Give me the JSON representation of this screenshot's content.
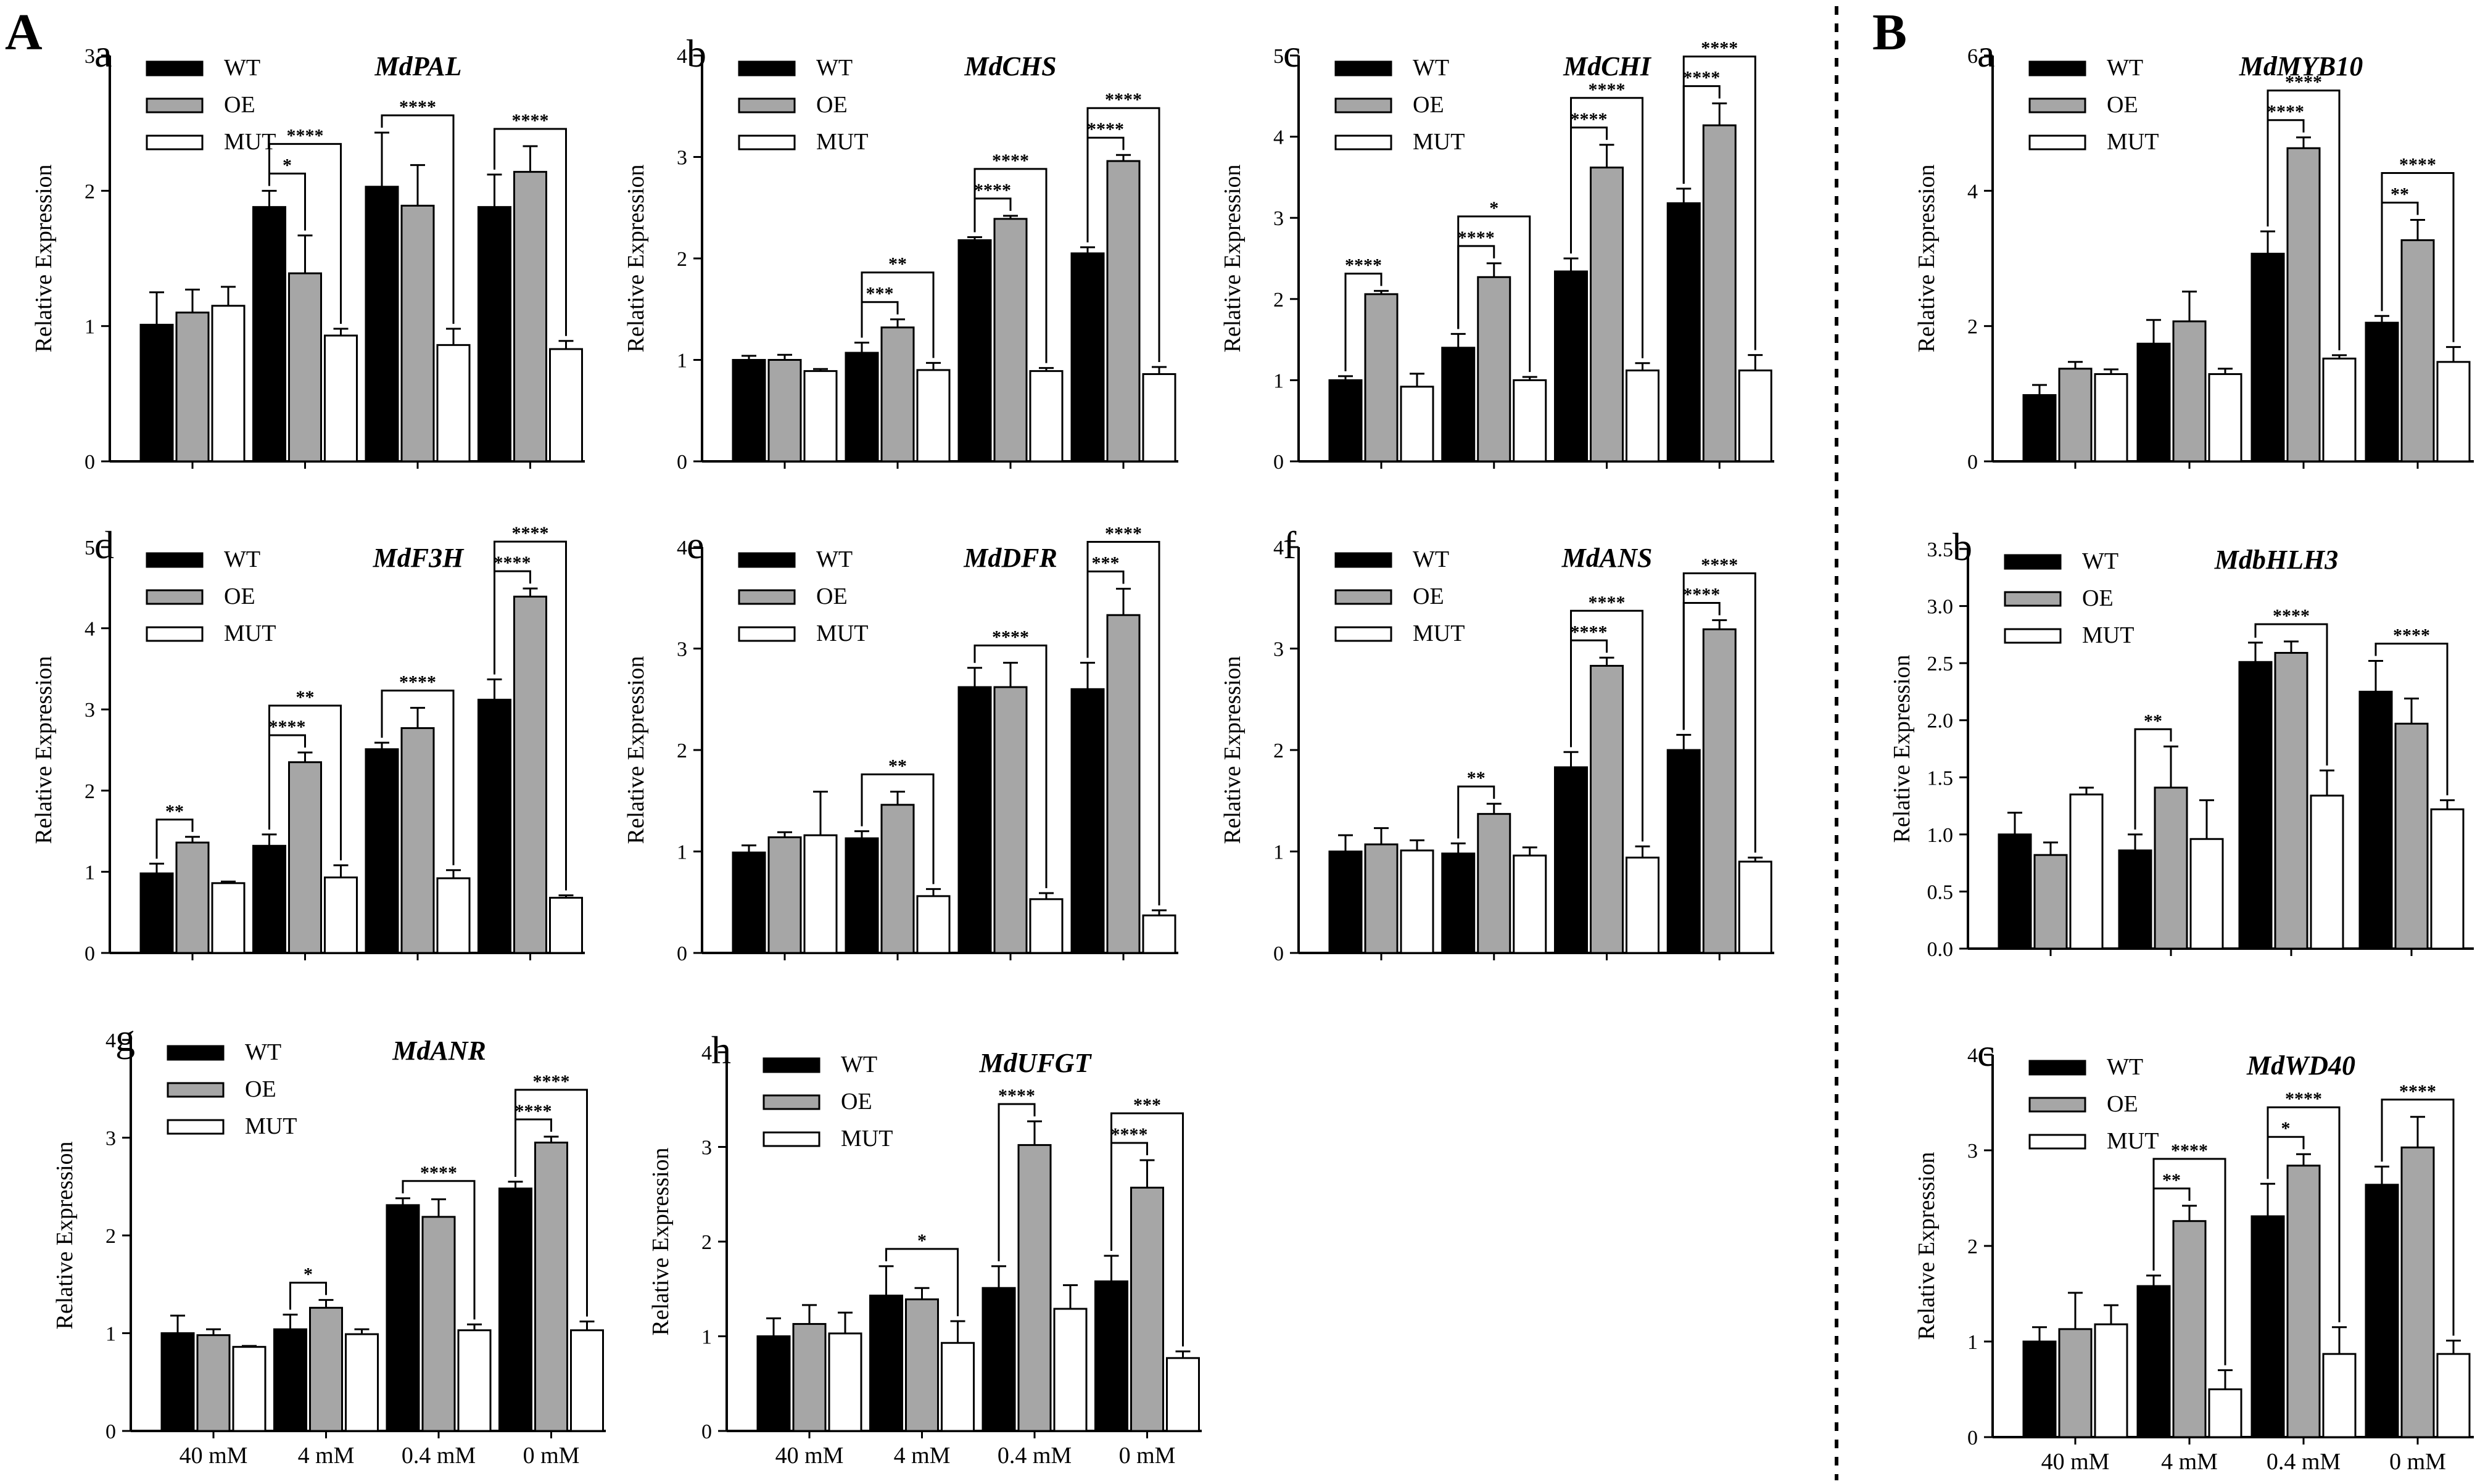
{
  "section_labels": {
    "A": "A",
    "B": "B"
  },
  "legend": {
    "series": [
      {
        "name": "WT",
        "color": "#000000"
      },
      {
        "name": "OE",
        "color": "#a6a6a6"
      },
      {
        "name": "MUT",
        "color": "#ffffff"
      }
    ]
  },
  "categories": [
    "40 mM",
    "4 mM",
    "0.4 mM",
    "0 mM"
  ],
  "chart_data": [
    {
      "id": "A-a",
      "panel_letter": "a",
      "gene": "MdPAL",
      "type": "bar",
      "ylabel": "Relative Expression",
      "ylim": [
        0,
        3
      ],
      "yticks": [
        "0",
        "1",
        "2",
        "3"
      ],
      "categories": [
        "40 mM",
        "4 mM",
        "0.4 mM",
        "0 mM"
      ],
      "series": [
        {
          "name": "WT",
          "values": [
            1.01,
            1.88,
            2.03,
            1.88
          ],
          "errors": [
            0.24,
            0.12,
            0.4,
            0.24
          ]
        },
        {
          "name": "OE",
          "values": [
            1.1,
            1.39,
            1.89,
            2.14
          ],
          "errors": [
            0.17,
            0.28,
            0.3,
            0.19
          ]
        },
        {
          "name": "MUT",
          "values": [
            1.15,
            0.93,
            0.86,
            0.83
          ],
          "errors": [
            0.14,
            0.05,
            0.12,
            0.06
          ]
        }
      ],
      "annotations": [
        {
          "group": 1,
          "from": "WT",
          "to": "OE",
          "text": "*"
        },
        {
          "group": 1,
          "from": "WT",
          "to": "MUT",
          "text": "****"
        },
        {
          "group": 2,
          "from": "WT",
          "to": "MUT",
          "text": "****"
        },
        {
          "group": 3,
          "from": "WT",
          "to": "MUT",
          "text": "****"
        }
      ]
    },
    {
      "id": "A-b",
      "panel_letter": "b",
      "gene": "MdCHS",
      "type": "bar",
      "ylabel": "Relative Expression",
      "ylim": [
        0,
        4
      ],
      "yticks": [
        "0",
        "1",
        "2",
        "3",
        "4"
      ],
      "categories": [
        "40 mM",
        "4 mM",
        "0.4 mM",
        "0 mM"
      ],
      "series": [
        {
          "name": "WT",
          "values": [
            1.0,
            1.07,
            2.18,
            2.05
          ],
          "errors": [
            0.04,
            0.1,
            0.03,
            0.06
          ]
        },
        {
          "name": "OE",
          "values": [
            1.0,
            1.32,
            2.39,
            2.96
          ],
          "errors": [
            0.05,
            0.08,
            0.03,
            0.06
          ]
        },
        {
          "name": "MUT",
          "values": [
            0.89,
            0.9,
            0.89,
            0.86
          ],
          "errors": [
            0.02,
            0.07,
            0.03,
            0.07
          ]
        }
      ],
      "annotations": [
        {
          "group": 1,
          "from": "WT",
          "to": "OE",
          "text": "***"
        },
        {
          "group": 1,
          "from": "WT",
          "to": "MUT",
          "text": "**"
        },
        {
          "group": 2,
          "from": "WT",
          "to": "OE",
          "text": "****"
        },
        {
          "group": 2,
          "from": "WT",
          "to": "MUT",
          "text": "****"
        },
        {
          "group": 3,
          "from": "WT",
          "to": "OE",
          "text": "****"
        },
        {
          "group": 3,
          "from": "WT",
          "to": "MUT",
          "text": "****"
        }
      ]
    },
    {
      "id": "A-c",
      "panel_letter": "c",
      "gene": "MdCHI",
      "type": "bar",
      "ylabel": "Relative Expression",
      "ylim": [
        0,
        5
      ],
      "yticks": [
        "0",
        "1",
        "2",
        "3",
        "4",
        "5"
      ],
      "categories": [
        "40 mM",
        "4 mM",
        "0.4 mM",
        "0 mM"
      ],
      "series": [
        {
          "name": "WT",
          "values": [
            1.0,
            1.4,
            2.34,
            3.18
          ],
          "errors": [
            0.05,
            0.17,
            0.16,
            0.18
          ]
        },
        {
          "name": "OE",
          "values": [
            2.06,
            2.27,
            3.62,
            4.14
          ],
          "errors": [
            0.04,
            0.17,
            0.28,
            0.27
          ]
        },
        {
          "name": "MUT",
          "values": [
            0.92,
            1.0,
            1.12,
            1.12
          ],
          "errors": [
            0.16,
            0.04,
            0.09,
            0.19
          ]
        }
      ],
      "annotations": [
        {
          "group": 0,
          "from": "WT",
          "to": "OE",
          "text": "****"
        },
        {
          "group": 1,
          "from": "WT",
          "to": "OE",
          "text": "****"
        },
        {
          "group": 1,
          "from": "WT",
          "to": "MUT",
          "text": "*"
        },
        {
          "group": 2,
          "from": "WT",
          "to": "OE",
          "text": "****"
        },
        {
          "group": 2,
          "from": "WT",
          "to": "MUT",
          "text": "****"
        },
        {
          "group": 3,
          "from": "WT",
          "to": "OE",
          "text": "****"
        },
        {
          "group": 3,
          "from": "WT",
          "to": "MUT",
          "text": "****"
        }
      ]
    },
    {
      "id": "A-d",
      "panel_letter": "d",
      "gene": "MdF3H",
      "type": "bar",
      "ylabel": "Relative Expression",
      "ylim": [
        0,
        5
      ],
      "yticks": [
        "0",
        "1",
        "2",
        "3",
        "4",
        "5"
      ],
      "categories": [
        "40 mM",
        "4 mM",
        "0.4 mM",
        "0 mM"
      ],
      "series": [
        {
          "name": "WT",
          "values": [
            0.98,
            1.32,
            2.51,
            3.12
          ],
          "errors": [
            0.12,
            0.14,
            0.08,
            0.25
          ]
        },
        {
          "name": "OE",
          "values": [
            1.36,
            2.35,
            2.77,
            4.39
          ],
          "errors": [
            0.07,
            0.12,
            0.25,
            0.1
          ]
        },
        {
          "name": "MUT",
          "values": [
            0.86,
            0.93,
            0.92,
            0.68
          ],
          "errors": [
            0.02,
            0.15,
            0.1,
            0.03
          ]
        }
      ],
      "annotations": [
        {
          "group": 0,
          "from": "WT",
          "to": "OE",
          "text": "**"
        },
        {
          "group": 1,
          "from": "WT",
          "to": "OE",
          "text": "****"
        },
        {
          "group": 1,
          "from": "WT",
          "to": "MUT",
          "text": "**"
        },
        {
          "group": 2,
          "from": "WT",
          "to": "MUT",
          "text": "****"
        },
        {
          "group": 3,
          "from": "WT",
          "to": "OE",
          "text": "****"
        },
        {
          "group": 3,
          "from": "WT",
          "to": "MUT",
          "text": "****"
        }
      ]
    },
    {
      "id": "A-e",
      "panel_letter": "e",
      "gene": "MdDFR",
      "type": "bar",
      "ylabel": "Relative Expression",
      "ylim": [
        0,
        4
      ],
      "yticks": [
        "0",
        "1",
        "2",
        "3",
        "4"
      ],
      "categories": [
        "40 mM",
        "4 mM",
        "0.4 mM",
        "0 mM"
      ],
      "series": [
        {
          "name": "WT",
          "values": [
            0.99,
            1.13,
            2.62,
            2.6
          ],
          "errors": [
            0.07,
            0.07,
            0.19,
            0.26
          ]
        },
        {
          "name": "OE",
          "values": [
            1.14,
            1.46,
            2.62,
            3.33
          ],
          "errors": [
            0.05,
            0.13,
            0.24,
            0.26
          ]
        },
        {
          "name": "MUT",
          "values": [
            1.16,
            0.56,
            0.53,
            0.37
          ],
          "errors": [
            0.43,
            0.07,
            0.06,
            0.05
          ]
        }
      ],
      "annotations": [
        {
          "group": 1,
          "from": "WT",
          "to": "MUT",
          "text": "**"
        },
        {
          "group": 2,
          "from": "WT",
          "to": "MUT",
          "text": "****"
        },
        {
          "group": 3,
          "from": "WT",
          "to": "OE",
          "text": "***"
        },
        {
          "group": 3,
          "from": "WT",
          "to": "MUT",
          "text": "****"
        }
      ]
    },
    {
      "id": "A-f",
      "panel_letter": "f",
      "gene": "MdANS",
      "type": "bar",
      "ylabel": "Relative Expression",
      "ylim": [
        0,
        4
      ],
      "yticks": [
        "0",
        "1",
        "2",
        "3",
        "4"
      ],
      "categories": [
        "40 mM",
        "4 mM",
        "0.4 mM",
        "0 mM"
      ],
      "series": [
        {
          "name": "WT",
          "values": [
            1.0,
            0.98,
            1.83,
            2.0
          ],
          "errors": [
            0.16,
            0.1,
            0.15,
            0.15
          ]
        },
        {
          "name": "OE",
          "values": [
            1.07,
            1.37,
            2.83,
            3.19
          ],
          "errors": [
            0.16,
            0.1,
            0.08,
            0.09
          ]
        },
        {
          "name": "MUT",
          "values": [
            1.01,
            0.96,
            0.94,
            0.9
          ],
          "errors": [
            0.1,
            0.08,
            0.11,
            0.04
          ]
        }
      ],
      "annotations": [
        {
          "group": 1,
          "from": "WT",
          "to": "OE",
          "text": "**"
        },
        {
          "group": 2,
          "from": "WT",
          "to": "OE",
          "text": "****"
        },
        {
          "group": 2,
          "from": "WT",
          "to": "MUT",
          "text": "****"
        },
        {
          "group": 3,
          "from": "WT",
          "to": "OE",
          "text": "****"
        },
        {
          "group": 3,
          "from": "WT",
          "to": "MUT",
          "text": "****"
        }
      ]
    },
    {
      "id": "A-g",
      "panel_letter": "g",
      "gene": "MdANR",
      "type": "bar",
      "ylabel": "Relative Expression",
      "ylim": [
        0,
        4
      ],
      "yticks": [
        "0",
        "1",
        "2",
        "3",
        "4"
      ],
      "categories": [
        "40 mM",
        "4 mM",
        "0.4 mM",
        "0 mM"
      ],
      "series": [
        {
          "name": "WT",
          "values": [
            1.0,
            1.04,
            2.31,
            2.48
          ],
          "errors": [
            0.18,
            0.15,
            0.07,
            0.07
          ]
        },
        {
          "name": "OE",
          "values": [
            0.98,
            1.26,
            2.19,
            2.95
          ],
          "errors": [
            0.06,
            0.08,
            0.18,
            0.06
          ]
        },
        {
          "name": "MUT",
          "values": [
            0.86,
            0.99,
            1.03,
            1.03
          ],
          "errors": [
            0.01,
            0.05,
            0.06,
            0.09
          ]
        }
      ],
      "annotations": [
        {
          "group": 1,
          "from": "WT",
          "to": "OE",
          "text": "*"
        },
        {
          "group": 2,
          "from": "WT",
          "to": "MUT",
          "text": "****"
        },
        {
          "group": 3,
          "from": "WT",
          "to": "OE",
          "text": "****"
        },
        {
          "group": 3,
          "from": "WT",
          "to": "MUT",
          "text": "****"
        }
      ]
    },
    {
      "id": "A-h",
      "panel_letter": "h",
      "gene": "MdUFGT",
      "type": "bar",
      "ylabel": "Relative Expression",
      "ylim": [
        0,
        4
      ],
      "yticks": [
        "0",
        "1",
        "2",
        "3",
        "4"
      ],
      "categories": [
        "40 mM",
        "4 mM",
        "0.4 mM",
        "0 mM"
      ],
      "series": [
        {
          "name": "WT",
          "values": [
            1.0,
            1.43,
            1.51,
            1.58
          ],
          "errors": [
            0.19,
            0.31,
            0.23,
            0.27
          ]
        },
        {
          "name": "OE",
          "values": [
            1.13,
            1.39,
            3.02,
            2.57
          ],
          "errors": [
            0.2,
            0.12,
            0.25,
            0.29
          ]
        },
        {
          "name": "MUT",
          "values": [
            1.03,
            0.93,
            1.29,
            0.77
          ],
          "errors": [
            0.22,
            0.23,
            0.25,
            0.07
          ]
        }
      ],
      "annotations": [
        {
          "group": 1,
          "from": "WT",
          "to": "MUT",
          "text": "*"
        },
        {
          "group": 2,
          "from": "WT",
          "to": "OE",
          "text": "****"
        },
        {
          "group": 3,
          "from": "WT",
          "to": "OE",
          "text": "****"
        },
        {
          "group": 3,
          "from": "WT",
          "to": "MUT",
          "text": "***"
        }
      ]
    },
    {
      "id": "B-a",
      "panel_letter": "a",
      "gene": "MdMYB10",
      "type": "bar",
      "ylabel": "Relative Expression",
      "ylim": [
        0,
        6
      ],
      "yticks": [
        "0",
        "2",
        "4",
        "6"
      ],
      "categories": [
        "40 mM",
        "4 mM",
        "0.4 mM",
        "0 mM"
      ],
      "series": [
        {
          "name": "WT",
          "values": [
            0.98,
            1.74,
            3.07,
            2.05
          ],
          "errors": [
            0.15,
            0.35,
            0.33,
            0.1
          ]
        },
        {
          "name": "OE",
          "values": [
            1.37,
            2.07,
            4.63,
            3.27
          ],
          "errors": [
            0.1,
            0.44,
            0.16,
            0.3
          ]
        },
        {
          "name": "MUT",
          "values": [
            1.29,
            1.29,
            1.52,
            1.47
          ],
          "errors": [
            0.07,
            0.08,
            0.05,
            0.22
          ]
        }
      ],
      "annotations": [
        {
          "group": 2,
          "from": "WT",
          "to": "OE",
          "text": "****"
        },
        {
          "group": 2,
          "from": "WT",
          "to": "MUT",
          "text": "****"
        },
        {
          "group": 3,
          "from": "WT",
          "to": "OE",
          "text": "**"
        },
        {
          "group": 3,
          "from": "WT",
          "to": "MUT",
          "text": "****"
        }
      ]
    },
    {
      "id": "B-b",
      "panel_letter": "b",
      "gene": "MdbHLH3",
      "type": "bar",
      "ylabel": "Relative Expression",
      "ylim": [
        0,
        3.5
      ],
      "yticks": [
        "0.0",
        "0.5",
        "1.0",
        "1.5",
        "2.0",
        "2.5",
        "3.0",
        "3.5"
      ],
      "categories": [
        "40 mM",
        "4 mM",
        "0.4 mM",
        "0 mM"
      ],
      "series": [
        {
          "name": "WT",
          "values": [
            1.0,
            0.86,
            2.51,
            2.25
          ],
          "errors": [
            0.19,
            0.14,
            0.17,
            0.27
          ]
        },
        {
          "name": "OE",
          "values": [
            0.82,
            1.41,
            2.59,
            1.97
          ],
          "errors": [
            0.11,
            0.36,
            0.1,
            0.22
          ]
        },
        {
          "name": "MUT",
          "values": [
            1.35,
            0.96,
            1.34,
            1.22
          ],
          "errors": [
            0.06,
            0.34,
            0.22,
            0.08
          ]
        }
      ],
      "annotations": [
        {
          "group": 1,
          "from": "WT",
          "to": "OE",
          "text": "**"
        },
        {
          "group": 2,
          "from": "WT",
          "to": "MUT",
          "text": "****"
        },
        {
          "group": 3,
          "from": "WT",
          "to": "MUT",
          "text": "****"
        }
      ]
    },
    {
      "id": "B-c",
      "panel_letter": "c",
      "gene": "MdWD40",
      "type": "bar",
      "ylabel": "Relative Expression",
      "ylim": [
        0,
        4
      ],
      "yticks": [
        "0",
        "1",
        "2",
        "3",
        "4"
      ],
      "categories": [
        "40 mM",
        "4 mM",
        "0.4 mM",
        "0 mM"
      ],
      "series": [
        {
          "name": "WT",
          "values": [
            1.0,
            1.58,
            2.31,
            2.64
          ],
          "errors": [
            0.15,
            0.11,
            0.34,
            0.19
          ]
        },
        {
          "name": "OE",
          "values": [
            1.13,
            2.26,
            2.84,
            3.03
          ],
          "errors": [
            0.38,
            0.16,
            0.12,
            0.32
          ]
        },
        {
          "name": "MUT",
          "values": [
            1.18,
            0.5,
            0.87,
            0.87
          ],
          "errors": [
            0.2,
            0.2,
            0.28,
            0.14
          ]
        }
      ],
      "annotations": [
        {
          "group": 1,
          "from": "WT",
          "to": "OE",
          "text": "**"
        },
        {
          "group": 1,
          "from": "WT",
          "to": "MUT",
          "text": "****"
        },
        {
          "group": 2,
          "from": "WT",
          "to": "OE",
          "text": "*"
        },
        {
          "group": 2,
          "from": "WT",
          "to": "MUT",
          "text": "****"
        },
        {
          "group": 3,
          "from": "WT",
          "to": "MUT",
          "text": "****"
        }
      ]
    }
  ]
}
